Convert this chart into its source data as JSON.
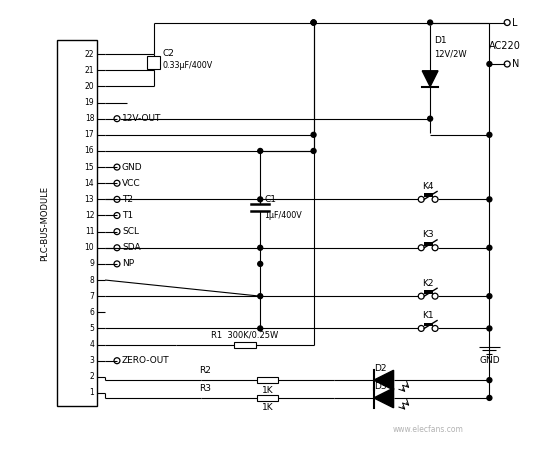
{
  "bg_color": "#ffffff",
  "fig_width": 5.56,
  "fig_height": 4.57,
  "dpi": 100,
  "plc_label": "PLC-BUS-MODULE",
  "pin_numbers": [
    22,
    21,
    20,
    19,
    18,
    17,
    16,
    15,
    14,
    13,
    12,
    11,
    10,
    9,
    8,
    7,
    6,
    5,
    4,
    3,
    2,
    1
  ],
  "labeled_pins": {
    "15": "GND",
    "14": "VCC",
    "13": "T2",
    "12": "T1",
    "11": "SCL",
    "10": "SDA",
    "9": "NP"
  },
  "pin18_label": "12V-OUT",
  "pin3_label": "ZERO-OUT",
  "c2_label": "C2",
  "c2_val": "0.33μF/400V",
  "c1_label": "C1",
  "c1_val": "1μF/400V",
  "d1_label": "D1",
  "d1_val": "12V/2W",
  "r1_label": "R1  300K/0.25W",
  "r2_label": "R2",
  "r3_label": "R3",
  "r2_val": "1K",
  "r3_val": "1K",
  "d2_label": "D2",
  "d3_label": "D3",
  "k_labels": [
    "K4",
    "K3",
    "K2",
    "K1"
  ],
  "L_label": "L",
  "N_label": "N",
  "AC_label": "AC220",
  "gnd_label": "GND",
  "watermark": "www.elecfans.com",
  "lw": 0.8
}
